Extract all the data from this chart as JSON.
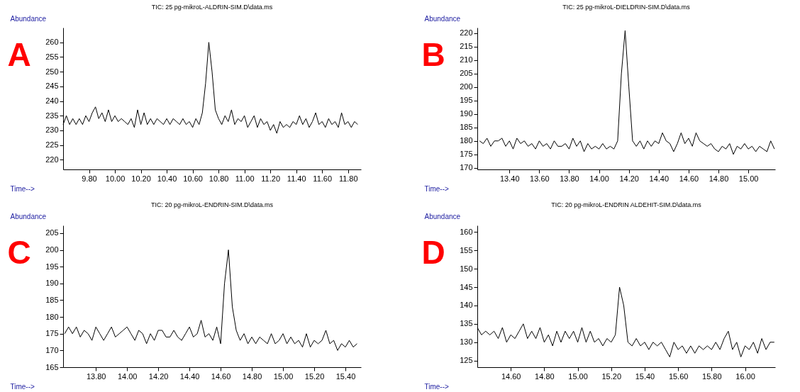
{
  "chart_data": [
    {
      "type": "line",
      "title": "TIC: 25 pg-mikroL-ALDRIN-SIM.D\\data.ms",
      "xlabel": "Time-->",
      "ylabel": "Abundance",
      "annotations": [
        "A"
      ],
      "grid": false,
      "marker": "none",
      "line_style": "solid",
      "xlim": [
        9.6,
        11.9
      ],
      "ylim": [
        216.7,
        265
      ],
      "xticks": [
        {
          "value": 9.8,
          "label": "9.80"
        },
        {
          "value": 10,
          "label": "10.00"
        },
        {
          "value": 10.2,
          "label": "10.20"
        },
        {
          "value": 10.4,
          "label": "10.40"
        },
        {
          "value": 10.6,
          "label": "10.60"
        },
        {
          "value": 10.8,
          "label": "10.80"
        },
        {
          "value": 11,
          "label": "11.00"
        },
        {
          "value": 11.2,
          "label": "11.20"
        },
        {
          "value": 11.4,
          "label": "11.40"
        },
        {
          "value": 11.6,
          "label": "11.60"
        },
        {
          "value": 11.8,
          "label": "11.80"
        }
      ],
      "yticks": [
        220,
        225,
        230,
        235,
        240,
        245,
        250,
        255,
        260
      ],
      "x": [
        9.6,
        9.625,
        9.65,
        9.675,
        9.7,
        9.725,
        9.75,
        9.775,
        9.8,
        9.825,
        9.85,
        9.875,
        9.9,
        9.925,
        9.95,
        9.975,
        10,
        10.025,
        10.05,
        10.075,
        10.1,
        10.125,
        10.15,
        10.175,
        10.2,
        10.225,
        10.25,
        10.275,
        10.3,
        10.325,
        10.35,
        10.375,
        10.4,
        10.425,
        10.45,
        10.475,
        10.5,
        10.525,
        10.55,
        10.575,
        10.6,
        10.625,
        10.65,
        10.675,
        10.7,
        10.725,
        10.75,
        10.775,
        10.8,
        10.825,
        10.85,
        10.875,
        10.9,
        10.925,
        10.95,
        10.975,
        11,
        11.025,
        11.05,
        11.075,
        11.1,
        11.125,
        11.15,
        11.175,
        11.2,
        11.225,
        11.25,
        11.275,
        11.3,
        11.325,
        11.35,
        11.375,
        11.4,
        11.425,
        11.45,
        11.475,
        11.5,
        11.525,
        11.55,
        11.575,
        11.6,
        11.625,
        11.65,
        11.675,
        11.7,
        11.725,
        11.75,
        11.775,
        11.8,
        11.825,
        11.85,
        11.875
      ],
      "series": [
        {
          "color": "#000000",
          "values": [
            232,
            235,
            232,
            234,
            232,
            234,
            232,
            235,
            233,
            236,
            238,
            234,
            236,
            233,
            237,
            233,
            235,
            233,
            234,
            233,
            232,
            234,
            231,
            237,
            232,
            236,
            232,
            234,
            232,
            234,
            233,
            232,
            234,
            232,
            234,
            233,
            232,
            234,
            232,
            233,
            231,
            234,
            232,
            236,
            246,
            260,
            250,
            237,
            234,
            232,
            235,
            233,
            237,
            232,
            234,
            233,
            235,
            231,
            233,
            235,
            231,
            234,
            232,
            233,
            230,
            232,
            229,
            233,
            231,
            232,
            231,
            233,
            232,
            235,
            232,
            234,
            231,
            233,
            236,
            232,
            233,
            231,
            234,
            232,
            233,
            231,
            236,
            232,
            233,
            231,
            233,
            232
          ]
        }
      ]
    },
    {
      "type": "line",
      "title": "TIC: 25 pg-mikroL-DIELDRIN-SIM.D\\data.ms",
      "xlabel": "Time-->",
      "ylabel": "Abundance",
      "annotations": [
        "B"
      ],
      "grid": false,
      "marker": "none",
      "line_style": "solid",
      "xlim": [
        13.185,
        15.18
      ],
      "ylim": [
        169.4,
        222.1
      ],
      "xticks": [
        {
          "value": 13.4,
          "label": "13.40"
        },
        {
          "value": 13.6,
          "label": "13.60"
        },
        {
          "value": 13.8,
          "label": "13.80"
        },
        {
          "value": 14,
          "label": "14.00"
        },
        {
          "value": 14.2,
          "label": "14.20"
        },
        {
          "value": 14.4,
          "label": "14.40"
        },
        {
          "value": 14.6,
          "label": "14.60"
        },
        {
          "value": 14.8,
          "label": "14.80"
        },
        {
          "value": 15,
          "label": "15.00"
        }
      ],
      "yticks": [
        170,
        175,
        180,
        185,
        190,
        195,
        200,
        205,
        210,
        215,
        220
      ],
      "x": [
        13.2,
        13.225,
        13.25,
        13.275,
        13.3,
        13.325,
        13.35,
        13.375,
        13.4,
        13.425,
        13.45,
        13.475,
        13.5,
        13.525,
        13.55,
        13.575,
        13.6,
        13.625,
        13.65,
        13.675,
        13.7,
        13.725,
        13.75,
        13.775,
        13.8,
        13.825,
        13.85,
        13.875,
        13.9,
        13.925,
        13.95,
        13.975,
        14,
        14.025,
        14.05,
        14.075,
        14.1,
        14.125,
        14.15,
        14.175,
        14.2,
        14.225,
        14.25,
        14.275,
        14.3,
        14.325,
        14.35,
        14.375,
        14.4,
        14.425,
        14.45,
        14.475,
        14.5,
        14.525,
        14.55,
        14.575,
        14.6,
        14.625,
        14.65,
        14.675,
        14.7,
        14.725,
        14.75,
        14.775,
        14.8,
        14.825,
        14.85,
        14.875,
        14.9,
        14.925,
        14.95,
        14.975,
        15,
        15.025,
        15.05,
        15.075,
        15.1,
        15.125,
        15.15,
        15.175
      ],
      "series": [
        {
          "color": "#000000",
          "values": [
            180,
            179,
            181,
            178,
            180,
            180,
            181,
            178,
            180,
            177,
            181,
            179,
            180,
            178,
            179,
            177,
            180,
            178,
            179,
            177,
            180,
            178,
            178,
            179,
            177,
            181,
            178,
            180,
            176,
            179,
            177,
            178,
            177,
            179,
            177,
            178,
            177,
            180,
            205,
            221,
            200,
            180,
            178,
            180,
            177,
            180,
            178,
            180,
            179,
            183,
            180,
            179,
            176,
            179,
            183,
            179,
            181,
            178,
            183,
            180,
            179,
            178,
            179,
            177,
            176,
            178,
            177,
            179,
            175,
            178,
            177,
            179,
            177,
            178,
            176,
            178,
            177,
            176,
            180,
            177
          ]
        }
      ]
    },
    {
      "type": "line",
      "title": "TIC: 20 pg-mikroL-ENDRIN-SIM.D\\data.ms",
      "xlabel": "Time-->",
      "ylabel": "Abundance",
      "annotations": [
        "C"
      ],
      "grid": false,
      "marker": "none",
      "line_style": "solid",
      "xlim": [
        13.59,
        15.5
      ],
      "ylim": [
        165,
        207.3
      ],
      "xticks": [
        {
          "value": 13.8,
          "label": "13.80"
        },
        {
          "value": 14,
          "label": "14.00"
        },
        {
          "value": 14.2,
          "label": "14.20"
        },
        {
          "value": 14.4,
          "label": "14.40"
        },
        {
          "value": 14.6,
          "label": "14.60"
        },
        {
          "value": 14.8,
          "label": "14.80"
        },
        {
          "value": 15,
          "label": "15.00"
        },
        {
          "value": 15.2,
          "label": "15.20"
        },
        {
          "value": 15.4,
          "label": "15.40"
        }
      ],
      "yticks": [
        165,
        170,
        175,
        180,
        185,
        190,
        195,
        200,
        205
      ],
      "x": [
        13.6,
        13.625,
        13.65,
        13.675,
        13.7,
        13.725,
        13.75,
        13.775,
        13.8,
        13.825,
        13.85,
        13.875,
        13.9,
        13.925,
        13.95,
        13.975,
        14,
        14.025,
        14.05,
        14.075,
        14.1,
        14.125,
        14.15,
        14.175,
        14.2,
        14.225,
        14.25,
        14.275,
        14.3,
        14.325,
        14.35,
        14.375,
        14.4,
        14.425,
        14.45,
        14.475,
        14.5,
        14.525,
        14.55,
        14.575,
        14.6,
        14.625,
        14.65,
        14.675,
        14.7,
        14.725,
        14.75,
        14.775,
        14.8,
        14.825,
        14.85,
        14.875,
        14.9,
        14.925,
        14.95,
        14.975,
        15,
        15.025,
        15.05,
        15.075,
        15.1,
        15.125,
        15.15,
        15.175,
        15.2,
        15.225,
        15.25,
        15.275,
        15.3,
        15.325,
        15.35,
        15.375,
        15.4,
        15.425,
        15.45,
        15.475
      ],
      "series": [
        {
          "color": "#000000",
          "values": [
            175,
            177,
            175,
            177,
            174,
            176,
            175,
            173,
            177,
            175,
            173,
            175,
            177,
            174,
            175,
            176,
            177,
            175,
            173,
            176,
            175,
            172,
            175,
            173,
            176,
            176,
            174,
            174,
            176,
            174,
            173,
            175,
            177,
            174,
            175,
            179,
            174,
            175,
            173,
            177,
            172,
            190,
            200,
            183,
            176,
            173,
            175,
            172,
            174,
            172,
            174,
            173,
            172,
            175,
            172,
            173,
            175,
            172,
            174,
            172,
            173,
            171,
            175,
            171,
            173,
            172,
            173,
            176,
            172,
            173,
            170,
            172,
            171,
            173,
            171,
            172
          ]
        }
      ]
    },
    {
      "type": "line",
      "title": "TIC: 20 pg-mikroL-ENDRIN ALDEHIT-SIM.D\\data.ms",
      "xlabel": "Time-->",
      "ylabel": "Abundance",
      "annotations": [
        "D"
      ],
      "grid": false,
      "marker": "none",
      "line_style": "solid",
      "xlim": [
        14.4,
        16.18
      ],
      "ylim": [
        123.2,
        161.8
      ],
      "xticks": [
        {
          "value": 14.6,
          "label": "14.60"
        },
        {
          "value": 14.8,
          "label": "14.80"
        },
        {
          "value": 15,
          "label": "15.00"
        },
        {
          "value": 15.2,
          "label": "15.20"
        },
        {
          "value": 15.4,
          "label": "15.40"
        },
        {
          "value": 15.6,
          "label": "15.60"
        },
        {
          "value": 15.8,
          "label": "15.80"
        },
        {
          "value": 16,
          "label": "16.00"
        }
      ],
      "yticks": [
        125,
        130,
        135,
        140,
        145,
        150,
        155,
        160
      ],
      "x": [
        14.4,
        14.425,
        14.45,
        14.475,
        14.5,
        14.525,
        14.55,
        14.575,
        14.6,
        14.625,
        14.65,
        14.675,
        14.7,
        14.725,
        14.75,
        14.775,
        14.8,
        14.825,
        14.85,
        14.875,
        14.9,
        14.925,
        14.95,
        14.975,
        15,
        15.025,
        15.05,
        15.075,
        15.1,
        15.125,
        15.15,
        15.175,
        15.2,
        15.225,
        15.25,
        15.275,
        15.3,
        15.325,
        15.35,
        15.375,
        15.4,
        15.425,
        15.45,
        15.475,
        15.5,
        15.525,
        15.55,
        15.575,
        15.6,
        15.625,
        15.65,
        15.675,
        15.7,
        15.725,
        15.75,
        15.775,
        15.8,
        15.825,
        15.85,
        15.875,
        15.9,
        15.925,
        15.95,
        15.975,
        16,
        16.025,
        16.05,
        16.075,
        16.1,
        16.125,
        16.15,
        16.175
      ],
      "series": [
        {
          "color": "#000000",
          "values": [
            134,
            132,
            133,
            132,
            133,
            131,
            134,
            130,
            132,
            131,
            133,
            135,
            131,
            133,
            131,
            134,
            130,
            132,
            129,
            133,
            130,
            133,
            131,
            133,
            130,
            134,
            130,
            133,
            130,
            131,
            129,
            131,
            130,
            132,
            145,
            140,
            130,
            129,
            131,
            129,
            130,
            128,
            130,
            129,
            130,
            128,
            126,
            130,
            128,
            129,
            127,
            129,
            127,
            129,
            128,
            129,
            128,
            130,
            128,
            131,
            133,
            128,
            130,
            126,
            129,
            128,
            130,
            127,
            131,
            128,
            130,
            130
          ]
        }
      ]
    }
  ]
}
